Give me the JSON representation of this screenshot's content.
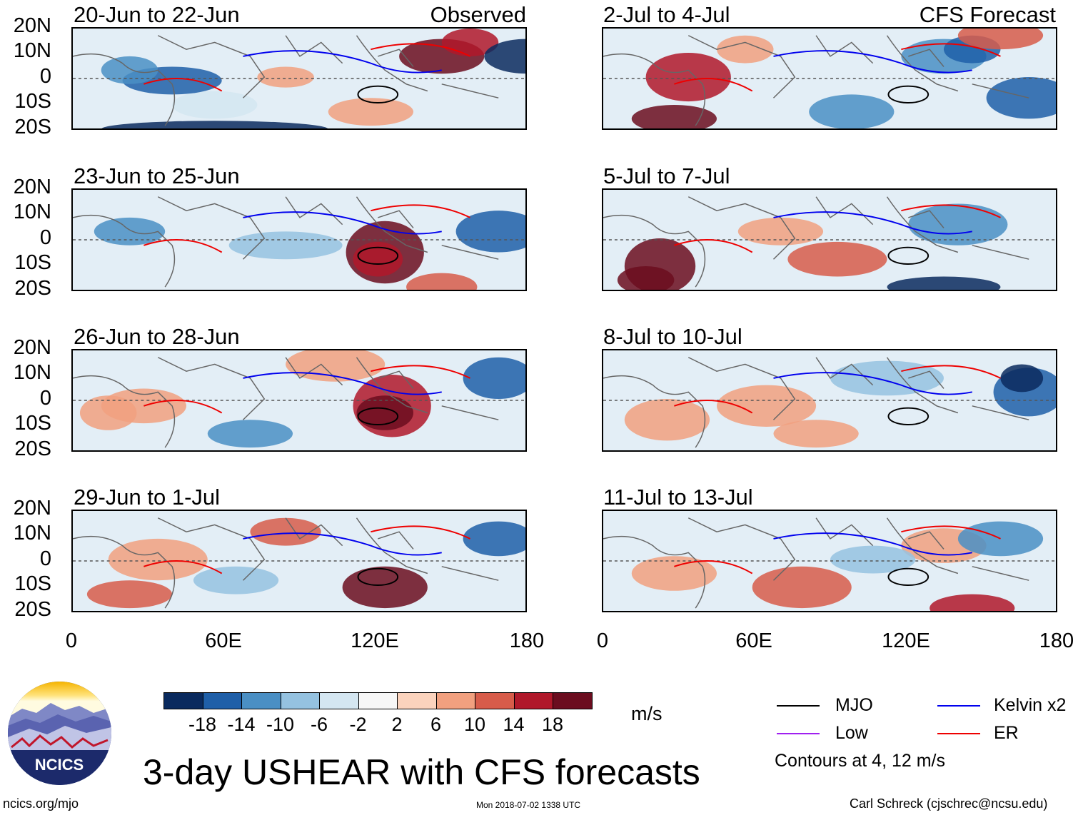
{
  "panel_headers": {
    "observed": "Observed",
    "forecast": "CFS Forecast"
  },
  "panels_left": [
    {
      "date": "20-Jun to 22-Jun"
    },
    {
      "date": "23-Jun to 25-Jun"
    },
    {
      "date": "26-Jun to 28-Jun"
    },
    {
      "date": "29-Jun to 1-Jul"
    }
  ],
  "panels_right": [
    {
      "date": "2-Jul to 4-Jul"
    },
    {
      "date": "5-Jul to 7-Jul"
    },
    {
      "date": "8-Jul to 10-Jul"
    },
    {
      "date": "11-Jul to 13-Jul"
    }
  ],
  "lat_ticks": [
    "20N",
    "10N",
    "0",
    "10S",
    "20S"
  ],
  "lon_ticks": [
    "0",
    "60E",
    "120E",
    "180"
  ],
  "colorbar": {
    "colors": [
      "#0a2a5e",
      "#1f5fa8",
      "#4a8fc4",
      "#95c2e0",
      "#d4e6f1",
      "#f7f7f7",
      "#fbd3bd",
      "#f1a07f",
      "#d75c4a",
      "#b0182a",
      "#6b0d1f"
    ],
    "labels": [
      "-18",
      "-14",
      "-10",
      "-6",
      "-2",
      "2",
      "6",
      "10",
      "14",
      "18"
    ],
    "unit": "m/s"
  },
  "legend": {
    "mjo": {
      "label": "MJO",
      "color": "#000000"
    },
    "kelvin": {
      "label": "Kelvin x2",
      "color": "#0000ee"
    },
    "low": {
      "label": "Low",
      "color": "#a020f0"
    },
    "er": {
      "label": "ER",
      "color": "#ee0000"
    },
    "note": "Contours at 4, 12 m/s"
  },
  "title": "3-day USHEAR with CFS forecasts",
  "footer": {
    "logo_text": "NCICS",
    "url": "ncics.org/mjo",
    "timestamp": "Mon 2018-07-02 1338 UTC",
    "author": "Carl Schreck (cjschrec@ncsu.edu)"
  }
}
